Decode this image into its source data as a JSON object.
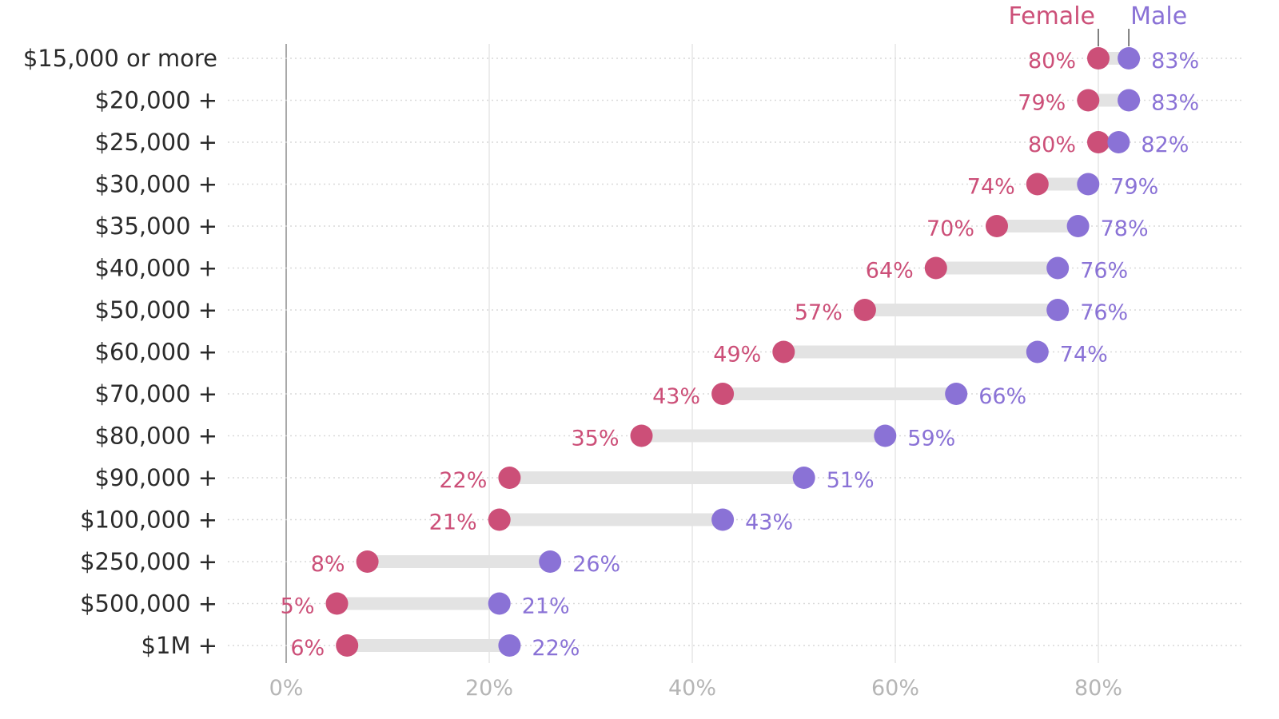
{
  "chart_data": {
    "type": "dumbbell",
    "categories": [
      "$15,000 or more",
      "$20,000 +",
      "$25,000 +",
      "$30,000 +",
      "$35,000 +",
      "$40,000 +",
      "$50,000 +",
      "$60,000 +",
      "$70,000 +",
      "$80,000 +",
      "$90,000 +",
      "$100,000 +",
      "$250,000 +",
      "$500,000 +",
      "$1M +"
    ],
    "series": [
      {
        "name": "Female",
        "color": "#cc4f78",
        "values": [
          80,
          79,
          80,
          74,
          70,
          64,
          57,
          49,
          43,
          35,
          22,
          21,
          8,
          5,
          6
        ]
      },
      {
        "name": "Male",
        "color": "#8a72d6",
        "values": [
          83,
          83,
          82,
          79,
          78,
          76,
          76,
          74,
          66,
          59,
          51,
          43,
          26,
          21,
          22
        ]
      }
    ],
    "value_labels": {
      "female": [
        "80%",
        "79%",
        "80%",
        "74%",
        "70%",
        "64%",
        "57%",
        "49%",
        "43%",
        "35%",
        "22%",
        "21%",
        "8%",
        "5%",
        "6%"
      ],
      "male": [
        "83%",
        "83%",
        "82%",
        "79%",
        "78%",
        "76%",
        "76%",
        "74%",
        "66%",
        "59%",
        "51%",
        "43%",
        "26%",
        "21%",
        "22%"
      ]
    },
    "x_ticks": [
      0,
      20,
      40,
      60,
      80
    ],
    "x_tick_labels": [
      "0%",
      "20%",
      "40%",
      "60%",
      "80%"
    ],
    "xlim": [
      0,
      92
    ],
    "grid": true,
    "legend": {
      "placement": "top",
      "female": "Female",
      "male": "Male"
    },
    "connector_color": "#e3e3e3"
  }
}
